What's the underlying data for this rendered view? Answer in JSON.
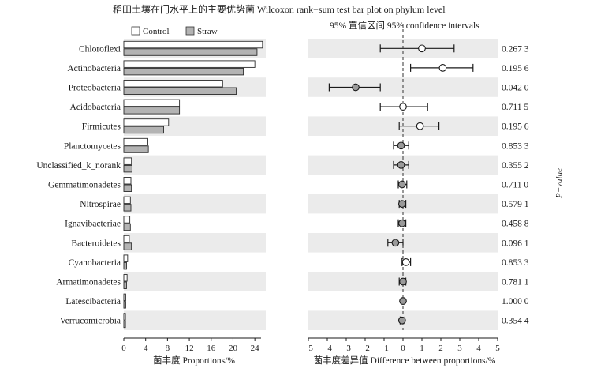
{
  "chart_data": {
    "type": "bar",
    "title": "稻田土壤在门水平上的主要优势菌 Wilcoxon rank−sum test bar plot on phylum level",
    "ci_title": "95% 置信区间 95% confidence intervals",
    "legend": [
      {
        "name": "Control",
        "color": "#ffffff"
      },
      {
        "name": "Straw",
        "color": "#b3b3b3"
      }
    ],
    "categories": [
      "Chloroflexi",
      "Actinobacteria",
      "Proteobacteria",
      "Acidobacteria",
      "Firmicutes",
      "Planctomycetes",
      "Unclassified_k_norank",
      "Gemmatimonadetes",
      "Nitrospirae",
      "Ignavibacteriae",
      "Bacteroidetes",
      "Cyanobacteria",
      "Armatimonadetes",
      "Latescibacteria",
      "Verrucomicrobia"
    ],
    "series": [
      {
        "name": "Control",
        "values": [
          25.4,
          24.0,
          18.1,
          10.2,
          8.2,
          4.4,
          1.4,
          1.3,
          1.2,
          1.1,
          1.0,
          0.7,
          0.6,
          0.35,
          0.3
        ]
      },
      {
        "name": "Straw",
        "values": [
          24.4,
          21.9,
          20.6,
          10.2,
          7.3,
          4.5,
          1.5,
          1.4,
          1.3,
          1.2,
          1.4,
          0.5,
          0.5,
          0.35,
          0.3
        ]
      }
    ],
    "proportions_axis": {
      "label": "菌丰度 Proportions/%",
      "range": [
        0,
        26
      ],
      "ticks": [
        0,
        4,
        8,
        12,
        16,
        20,
        24
      ]
    },
    "difference": [
      {
        "mean": 1.0,
        "low": -1.2,
        "high": 2.7,
        "color": "#ffffff"
      },
      {
        "mean": 2.1,
        "low": 0.4,
        "high": 3.7,
        "color": "#ffffff"
      },
      {
        "mean": -2.5,
        "low": -3.9,
        "high": -1.2,
        "color": "#9a9a9a"
      },
      {
        "mean": 0.0,
        "low": -1.2,
        "high": 1.3,
        "color": "#ffffff"
      },
      {
        "mean": 0.9,
        "low": -0.2,
        "high": 1.9,
        "color": "#ffffff"
      },
      {
        "mean": -0.1,
        "low": -0.5,
        "high": 0.3,
        "color": "#9a9a9a"
      },
      {
        "mean": -0.1,
        "low": -0.5,
        "high": 0.3,
        "color": "#9a9a9a"
      },
      {
        "mean": -0.05,
        "low": -0.25,
        "high": 0.2,
        "color": "#9a9a9a"
      },
      {
        "mean": -0.05,
        "low": -0.2,
        "high": 0.15,
        "color": "#9a9a9a"
      },
      {
        "mean": -0.05,
        "low": -0.25,
        "high": 0.15,
        "color": "#9a9a9a"
      },
      {
        "mean": -0.4,
        "low": -0.8,
        "high": 0.0,
        "color": "#9a9a9a"
      },
      {
        "mean": 0.15,
        "low": -0.05,
        "high": 0.4,
        "color": "#ffffff"
      },
      {
        "mean": 0.0,
        "low": -0.2,
        "high": 0.15,
        "color": "#9a9a9a"
      },
      {
        "mean": 0.0,
        "low": -0.1,
        "high": 0.1,
        "color": "#9a9a9a"
      },
      {
        "mean": -0.05,
        "low": -0.15,
        "high": 0.1,
        "color": "#9a9a9a"
      }
    ],
    "difference_axis": {
      "label": "菌丰度差异值 Difference between proportions/%",
      "range": [
        -5,
        5
      ],
      "ticks": [
        -5,
        -4,
        -3,
        -2,
        -1,
        0,
        1,
        2,
        3,
        4,
        5
      ]
    },
    "p_values": [
      "0.267 3",
      "0.195 6",
      "0.042 0",
      "0.711 5",
      "0.195 6",
      "0.853 3",
      "0.355 2",
      "0.711 0",
      "0.579 1",
      "0.458 8",
      "0.096 1",
      "0.853 3",
      "0.781 1",
      "1.000 0",
      "0.354 4"
    ],
    "p_value_label": "P−value",
    "row_shading": "#ebebeb"
  }
}
